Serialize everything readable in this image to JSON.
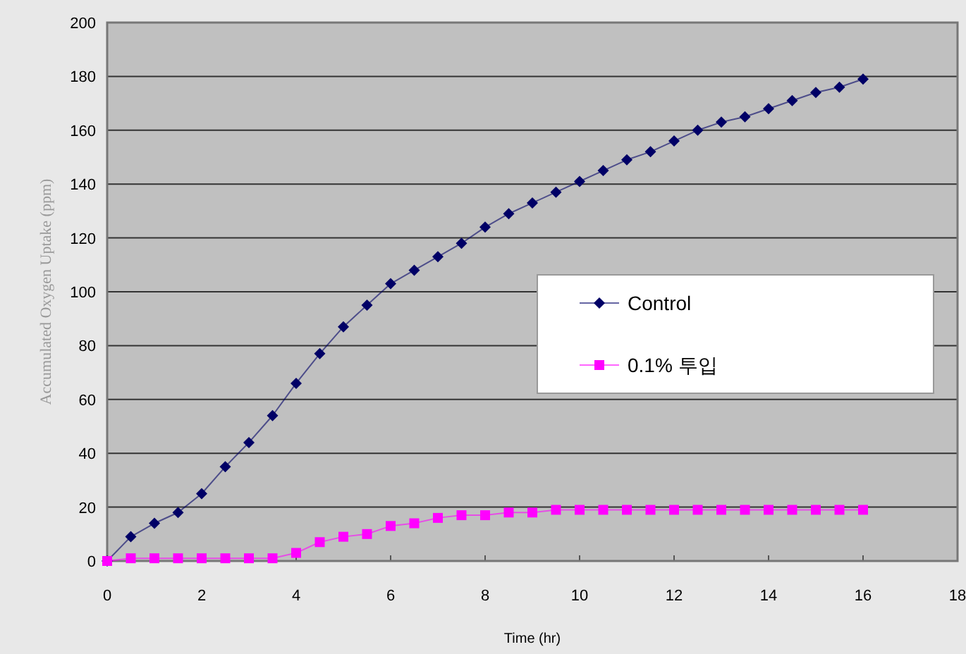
{
  "chart_data": {
    "type": "line",
    "xlabel": "Time (hr)",
    "ylabel": "Accumulated Oxygen Uptake (ppm)",
    "x": [
      0,
      0.5,
      1,
      1.5,
      2,
      2.5,
      3,
      3.5,
      4,
      4.5,
      5,
      5.5,
      6,
      6.5,
      7,
      7.5,
      8,
      8.5,
      9,
      9.5,
      10,
      10.5,
      11,
      11.5,
      12,
      12.5,
      13,
      13.5,
      14,
      14.5,
      15,
      15.5,
      16
    ],
    "series": [
      {
        "name": "Control",
        "color": "#000066",
        "marker": "diamond",
        "values": [
          0,
          9,
          14,
          18,
          25,
          35,
          44,
          54,
          66,
          77,
          87,
          95,
          103,
          108,
          113,
          118,
          124,
          129,
          133,
          137,
          141,
          145,
          149,
          152,
          156,
          160,
          163,
          165,
          168,
          171,
          174,
          176,
          179
        ]
      },
      {
        "name": "0.1% 투입",
        "color": "#ff00ff",
        "marker": "square",
        "values": [
          0,
          1,
          1,
          1,
          1,
          1,
          1,
          1,
          3,
          7,
          9,
          10,
          13,
          14,
          16,
          17,
          17,
          18,
          18,
          19,
          19,
          19,
          19,
          19,
          19,
          19,
          19,
          19,
          19,
          19,
          19,
          19,
          19
        ]
      }
    ],
    "xlim": [
      0,
      18
    ],
    "xticks": [
      0,
      2,
      4,
      6,
      8,
      10,
      12,
      14,
      16,
      18
    ],
    "ylim": [
      0,
      200
    ],
    "yticks": [
      0,
      20,
      40,
      60,
      80,
      100,
      120,
      140,
      160,
      180,
      200
    ],
    "grid": "y",
    "legend": "right"
  }
}
